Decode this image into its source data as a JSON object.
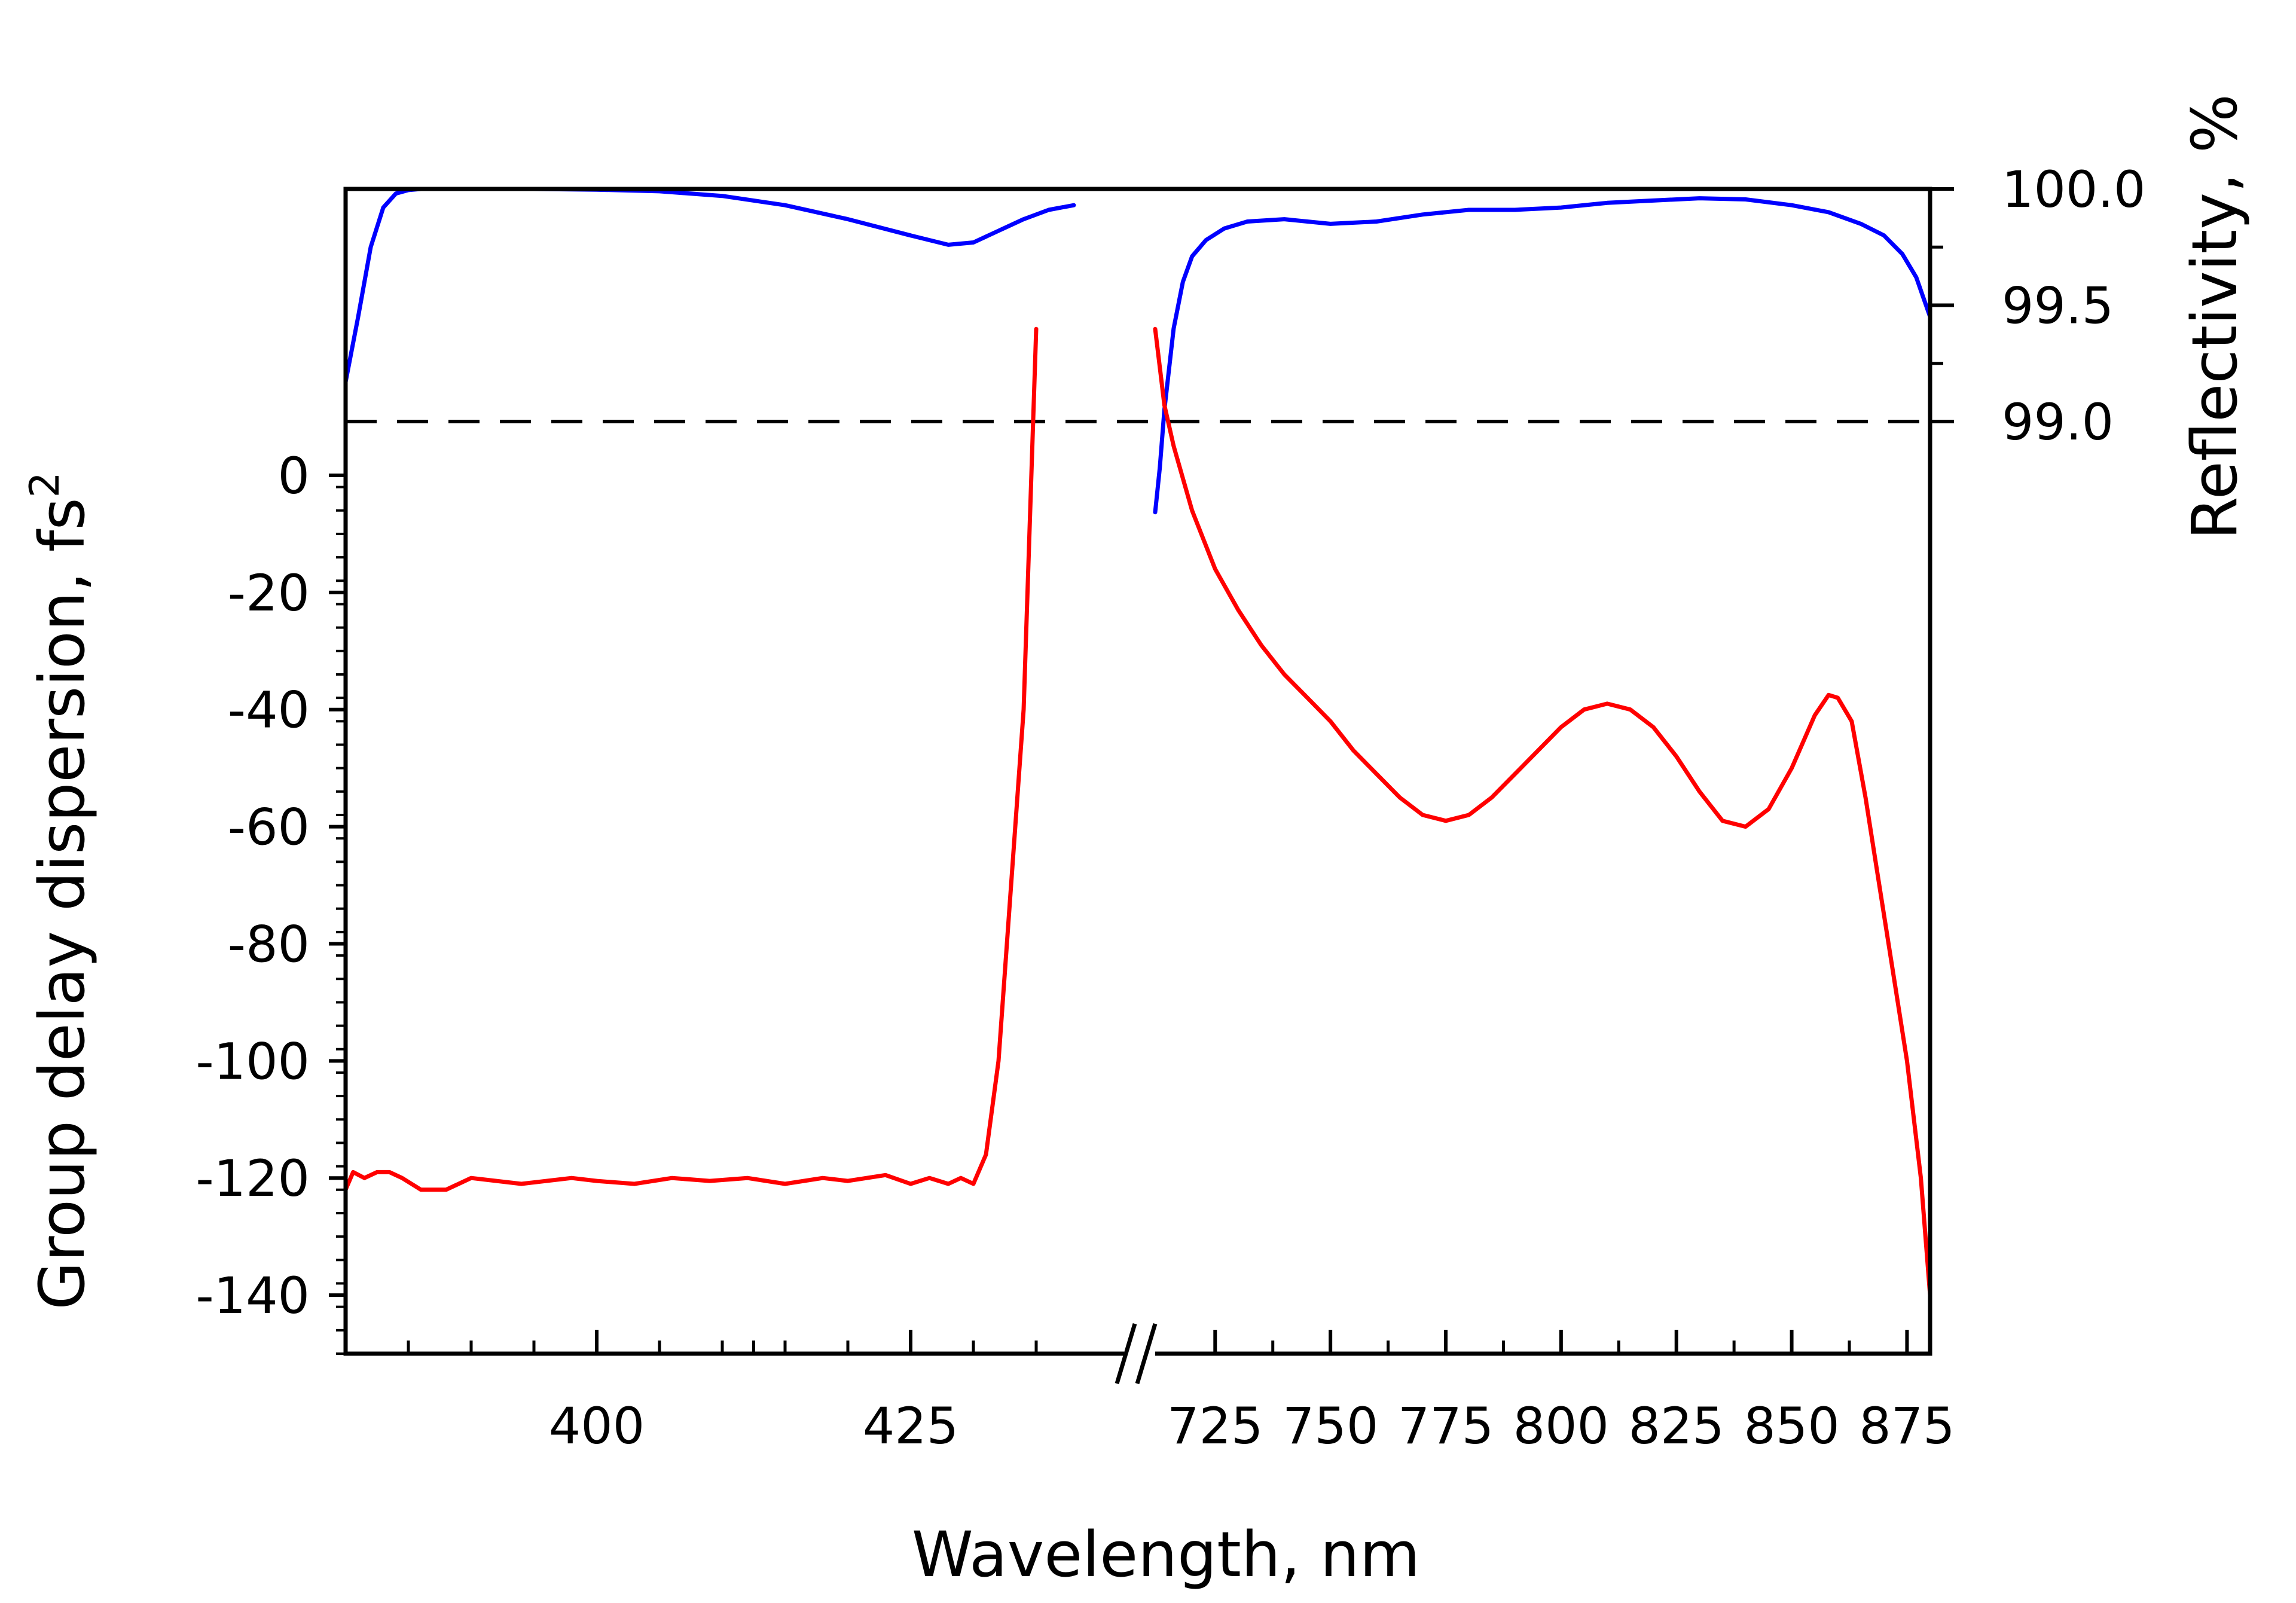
{
  "chart_data": {
    "type": "line",
    "title": "",
    "xlabel": "Wavelength, nm",
    "ylabel_left": "Group delay dispersion, fs",
    "ylabel_left_sup": "2",
    "ylabel_right": "Reflectivity, %",
    "x_axis_break": true,
    "x_segments": [
      {
        "xlim": [
          380,
          442
        ],
        "ticks": [
          400,
          425
        ],
        "tick_labels": [
          "400",
          "425"
        ]
      },
      {
        "xlim": [
          712,
          880
        ],
        "ticks": [
          725,
          750,
          775,
          800,
          825,
          850,
          875
        ],
        "tick_labels": [
          "725",
          "750",
          "775",
          "800",
          "825",
          "850",
          "875"
        ]
      }
    ],
    "y_left": {
      "ylim": [
        -150,
        0
      ],
      "ticks": [
        0,
        -20,
        -40,
        -60,
        -80,
        -100,
        -120,
        -140
      ],
      "tick_labels": [
        "0",
        "-20",
        "-40",
        "-60",
        "-80",
        "-100",
        "-120",
        "-140"
      ]
    },
    "y_right": {
      "ylim": [
        99.0,
        100.0
      ],
      "ticks": [
        100.0,
        99.5,
        99.0
      ],
      "tick_labels": [
        "100.0",
        "99.5",
        "99.0"
      ]
    },
    "reference_line": {
      "axis": "right",
      "value": 99.0,
      "style": "dashed",
      "color": "#000000"
    },
    "grid": false,
    "series": [
      {
        "axis": "right",
        "color": "#0000ff",
        "segments": [
          {
            "x": [
              380,
              381,
              382,
              383,
              384,
              385,
              386,
              388,
              390,
              395,
              400,
              405,
              410,
              415,
              420,
              425,
              428,
              430,
              432,
              434,
              436,
              438
            ],
            "y": [
              99.17,
              99.45,
              99.75,
              99.92,
              99.98,
              99.995,
              100.0,
              100.0,
              100.0,
              100.0,
              99.997,
              99.99,
              99.97,
              99.93,
              99.87,
              99.8,
              99.76,
              99.77,
              99.82,
              99.87,
              99.91,
              99.93
            ]
          },
          {
            "x": [
              712,
              713,
              714,
              716,
              718,
              720,
              723,
              727,
              732,
              740,
              750,
              760,
              770,
              780,
              790,
              800,
              810,
              820,
              830,
              840,
              850,
              858,
              865,
              870,
              874,
              877,
              880
            ],
            "y": [
              98.61,
              98.8,
              99.05,
              99.4,
              99.6,
              99.71,
              99.78,
              99.83,
              99.86,
              99.87,
              99.85,
              99.86,
              99.89,
              99.91,
              99.91,
              99.92,
              99.94,
              99.95,
              99.96,
              99.955,
              99.93,
              99.9,
              99.85,
              99.8,
              99.72,
              99.62,
              99.45
            ]
          }
        ]
      },
      {
        "axis": "left",
        "color": "#ff0000",
        "segments": [
          {
            "x": [
              380,
              380.6,
              381.5,
              382.5,
              383.5,
              384.5,
              386,
              388,
              390,
              394,
              398,
              400,
              403,
              406,
              409,
              412,
              415,
              418,
              420,
              423,
              425,
              426.5,
              428,
              429,
              430,
              431,
              432,
              433,
              434,
              435
            ],
            "y": [
              -122,
              -119,
              -120,
              -119,
              -119,
              -120,
              -122,
              -122,
              -120,
              -121,
              -120,
              -120.5,
              -121,
              -120,
              -120.5,
              -120,
              -121,
              -120,
              -120.5,
              -119.5,
              -121,
              -120,
              -121,
              -120,
              -121,
              -116,
              -100,
              -70,
              -40,
              25
            ]
          },
          {
            "x": [
              712,
              714,
              716,
              720,
              725,
              730,
              735,
              740,
              745,
              750,
              755,
              760,
              765,
              770,
              775,
              780,
              785,
              790,
              795,
              800,
              805,
              810,
              815,
              820,
              825,
              830,
              835,
              840,
              845,
              850,
              855,
              858,
              860,
              863,
              866,
              869,
              872,
              875,
              878,
              880
            ],
            "y": [
              25,
              12,
              5,
              -6,
              -16,
              -23,
              -29,
              -34,
              -38,
              -42,
              -47,
              -51,
              -55,
              -58,
              -59,
              -58,
              -55,
              -51,
              -47,
              -43,
              -40,
              -39,
              -40,
              -43,
              -48,
              -54,
              -59,
              -60,
              -57,
              -50,
              -41,
              -37.5,
              -38,
              -42,
              -55,
              -70,
              -85,
              -100,
              -120,
              -140
            ]
          }
        ]
      }
    ]
  }
}
